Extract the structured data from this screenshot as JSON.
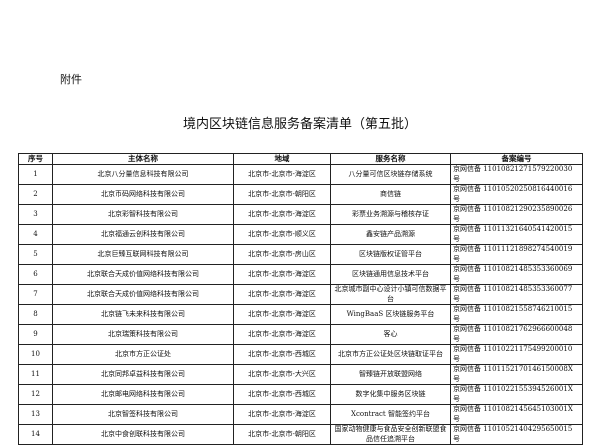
{
  "header": {
    "attachment": "附件",
    "title": "境内区块链信息服务备案清单（第五批）"
  },
  "table": {
    "columns": [
      "序号",
      "主体名称",
      "地域",
      "服务名称",
      "备案编号"
    ],
    "rows": [
      [
        "1",
        "北京八分量信息科技有限公司",
        "北京市-北京市-海淀区",
        "八分量可信区块链存储系统",
        "京网信备 11010821271579220030 号"
      ],
      [
        "2",
        "北京币码网络科技有限公司",
        "北京市-北京市-朝阳区",
        "商信链",
        "京网信备 11010520250816440016 号"
      ],
      [
        "3",
        "北京彩智科技有限公司",
        "北京市-北京市-海淀区",
        "彩票业务溯源与稽核存证",
        "京网信备 11010821290235890026 号"
      ],
      [
        "4",
        "北京福通云创科技有限公司",
        "北京市-北京市-顺义区",
        "鑫安链产品溯源",
        "京网信备 11011321640541420015 号"
      ],
      [
        "5",
        "北京巨臻互联网科技有限公司",
        "北京市-北京市-房山区",
        "区块链版权证管平台",
        "京网信备 11011121898274540019 号"
      ],
      [
        "6",
        "北京联合天成价值网络科技有限公司",
        "北京市-北京市-海淀区",
        "区块链通用信息技术平台",
        "京网信备 11010821485353360069 号"
      ],
      [
        "7",
        "北京联合天成价值网络科技有限公司",
        "北京市-北京市-海淀区",
        "北京城市副中心设计小镇可信数据平台",
        "京网信备 11010821485353360077 号"
      ],
      [
        "8",
        "北京链飞未来科技有限公司",
        "北京市-北京市-海淀区",
        "WingBaaS 区块链服务平台",
        "京网信备 11010821558746210015 号"
      ],
      [
        "9",
        "北京瑞策科技有限公司",
        "北京市-北京市-海淀区",
        "客心",
        "京网信备 11010821762966600048 号"
      ],
      [
        "10",
        "北京市方正公证处",
        "北京市-北京市-西城区",
        "北京市方正公证处区块链取证平台",
        "京网信备 11010221175499200010 号"
      ],
      [
        "11",
        "北京同邦卓益科技有限公司",
        "北京市-北京市-大兴区",
        "智臻链开放联盟网络",
        "京网信备 1101152170146150008X 号"
      ],
      [
        "12",
        "北京邮电网络科技有限公司",
        "北京市-北京市-西城区",
        "数字化集中服务区块链",
        "京网信备 1101022155394526001X 号"
      ],
      [
        "13",
        "北京智签科技有限公司",
        "北京市-北京市-海淀区",
        "Xcontract 智能签约平台",
        "京网信备 1101082145645103001X 号"
      ],
      [
        "14",
        "北京中食创联科技有限公司",
        "北京市-北京市-朝阳区",
        "国家动物健康与食品安全创新联盟食品信任追溯平台",
        "京网信备 11010521404295650015 号"
      ]
    ]
  }
}
